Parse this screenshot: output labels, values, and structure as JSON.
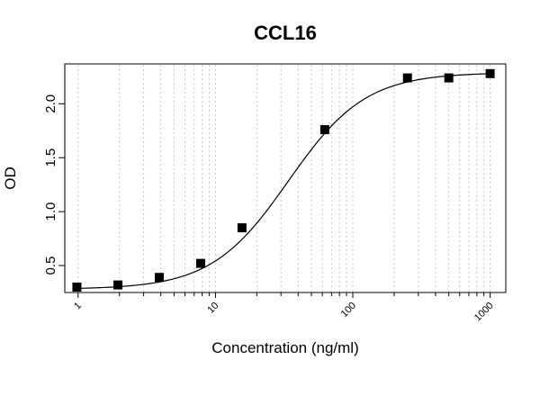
{
  "chart_data": {
    "type": "scatter",
    "title": "CCL16",
    "xlabel": "Concentration (ng/ml)",
    "ylabel": "OD",
    "x_scale": "log",
    "xlim": [
      0.8,
      1300
    ],
    "ylim": [
      0.25,
      2.37
    ],
    "x_ticks": [
      "1",
      "10",
      "100",
      "1000"
    ],
    "y_ticks": [
      "0.5",
      "1.0",
      "1.5",
      "2.0"
    ],
    "grid": "vertical dotted",
    "points": [
      {
        "x": 0.98,
        "y": 0.3
      },
      {
        "x": 1.95,
        "y": 0.32
      },
      {
        "x": 3.9,
        "y": 0.39
      },
      {
        "x": 7.8,
        "y": 0.52
      },
      {
        "x": 15.6,
        "y": 0.85
      },
      {
        "x": 62.5,
        "y": 1.76
      },
      {
        "x": 250,
        "y": 2.24
      },
      {
        "x": 500,
        "y": 2.24
      },
      {
        "x": 1000,
        "y": 2.28
      }
    ],
    "fit": {
      "type": "4PL",
      "bottom": 0.28,
      "top": 2.29,
      "ec50": 34,
      "hill": 1.55
    },
    "marker_color": "#000000"
  }
}
